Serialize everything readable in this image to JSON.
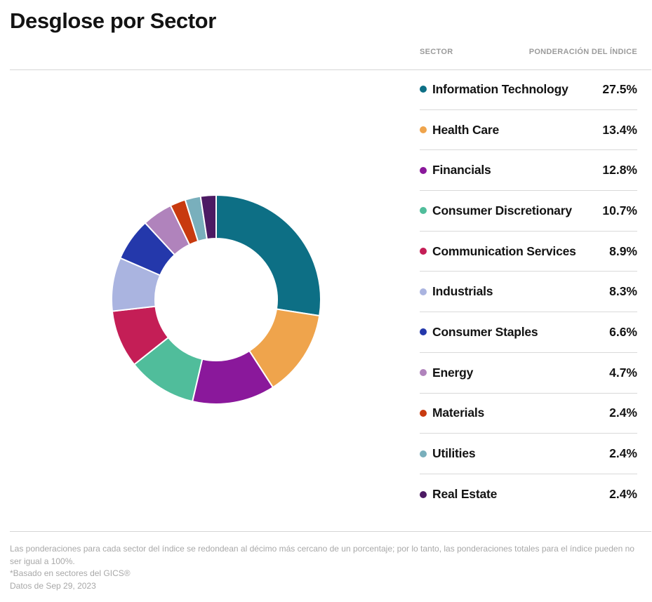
{
  "page": {
    "title": "Desglose por Sector"
  },
  "table": {
    "headers": {
      "sector": "SECTOR",
      "weight": "PONDERACIÓN DEL ÍNDICE"
    }
  },
  "chart_data": {
    "type": "pie",
    "subtype": "donut",
    "title": "Desglose por Sector",
    "legend_position": "right",
    "start_angle_deg": -90,
    "direction": "clockwise",
    "inner_radius_ratio": 0.585,
    "categories": [
      "Information Technology",
      "Health Care",
      "Financials",
      "Consumer Discretionary",
      "Communication Services",
      "Industrials",
      "Consumer Staples",
      "Energy",
      "Materials",
      "Utilities",
      "Real Estate"
    ],
    "values": [
      27.5,
      13.4,
      12.8,
      10.7,
      8.9,
      8.3,
      6.6,
      4.7,
      2.4,
      2.4,
      2.4
    ],
    "labels": [
      "27.5%",
      "13.4%",
      "12.8%",
      "10.7%",
      "8.9%",
      "8.3%",
      "6.6%",
      "4.7%",
      "2.4%",
      "2.4%",
      "2.4%"
    ],
    "colors": [
      "#0d6f85",
      "#efa44c",
      "#8a189b",
      "#50bd9b",
      "#c41e56",
      "#aab4e0",
      "#2438ab",
      "#b083bc",
      "#c83a0f",
      "#79afbc",
      "#4c1a63"
    ]
  },
  "footnotes": {
    "rounding": "Las ponderaciones para cada sector del índice se redondean al décimo más cercano de un porcentaje; por lo tanto, las ponderaciones totales para el índice pueden no ser igual a 100%.",
    "gics": "*Basado en sectores del GICS®",
    "date": "Datos de Sep 29, 2023"
  }
}
